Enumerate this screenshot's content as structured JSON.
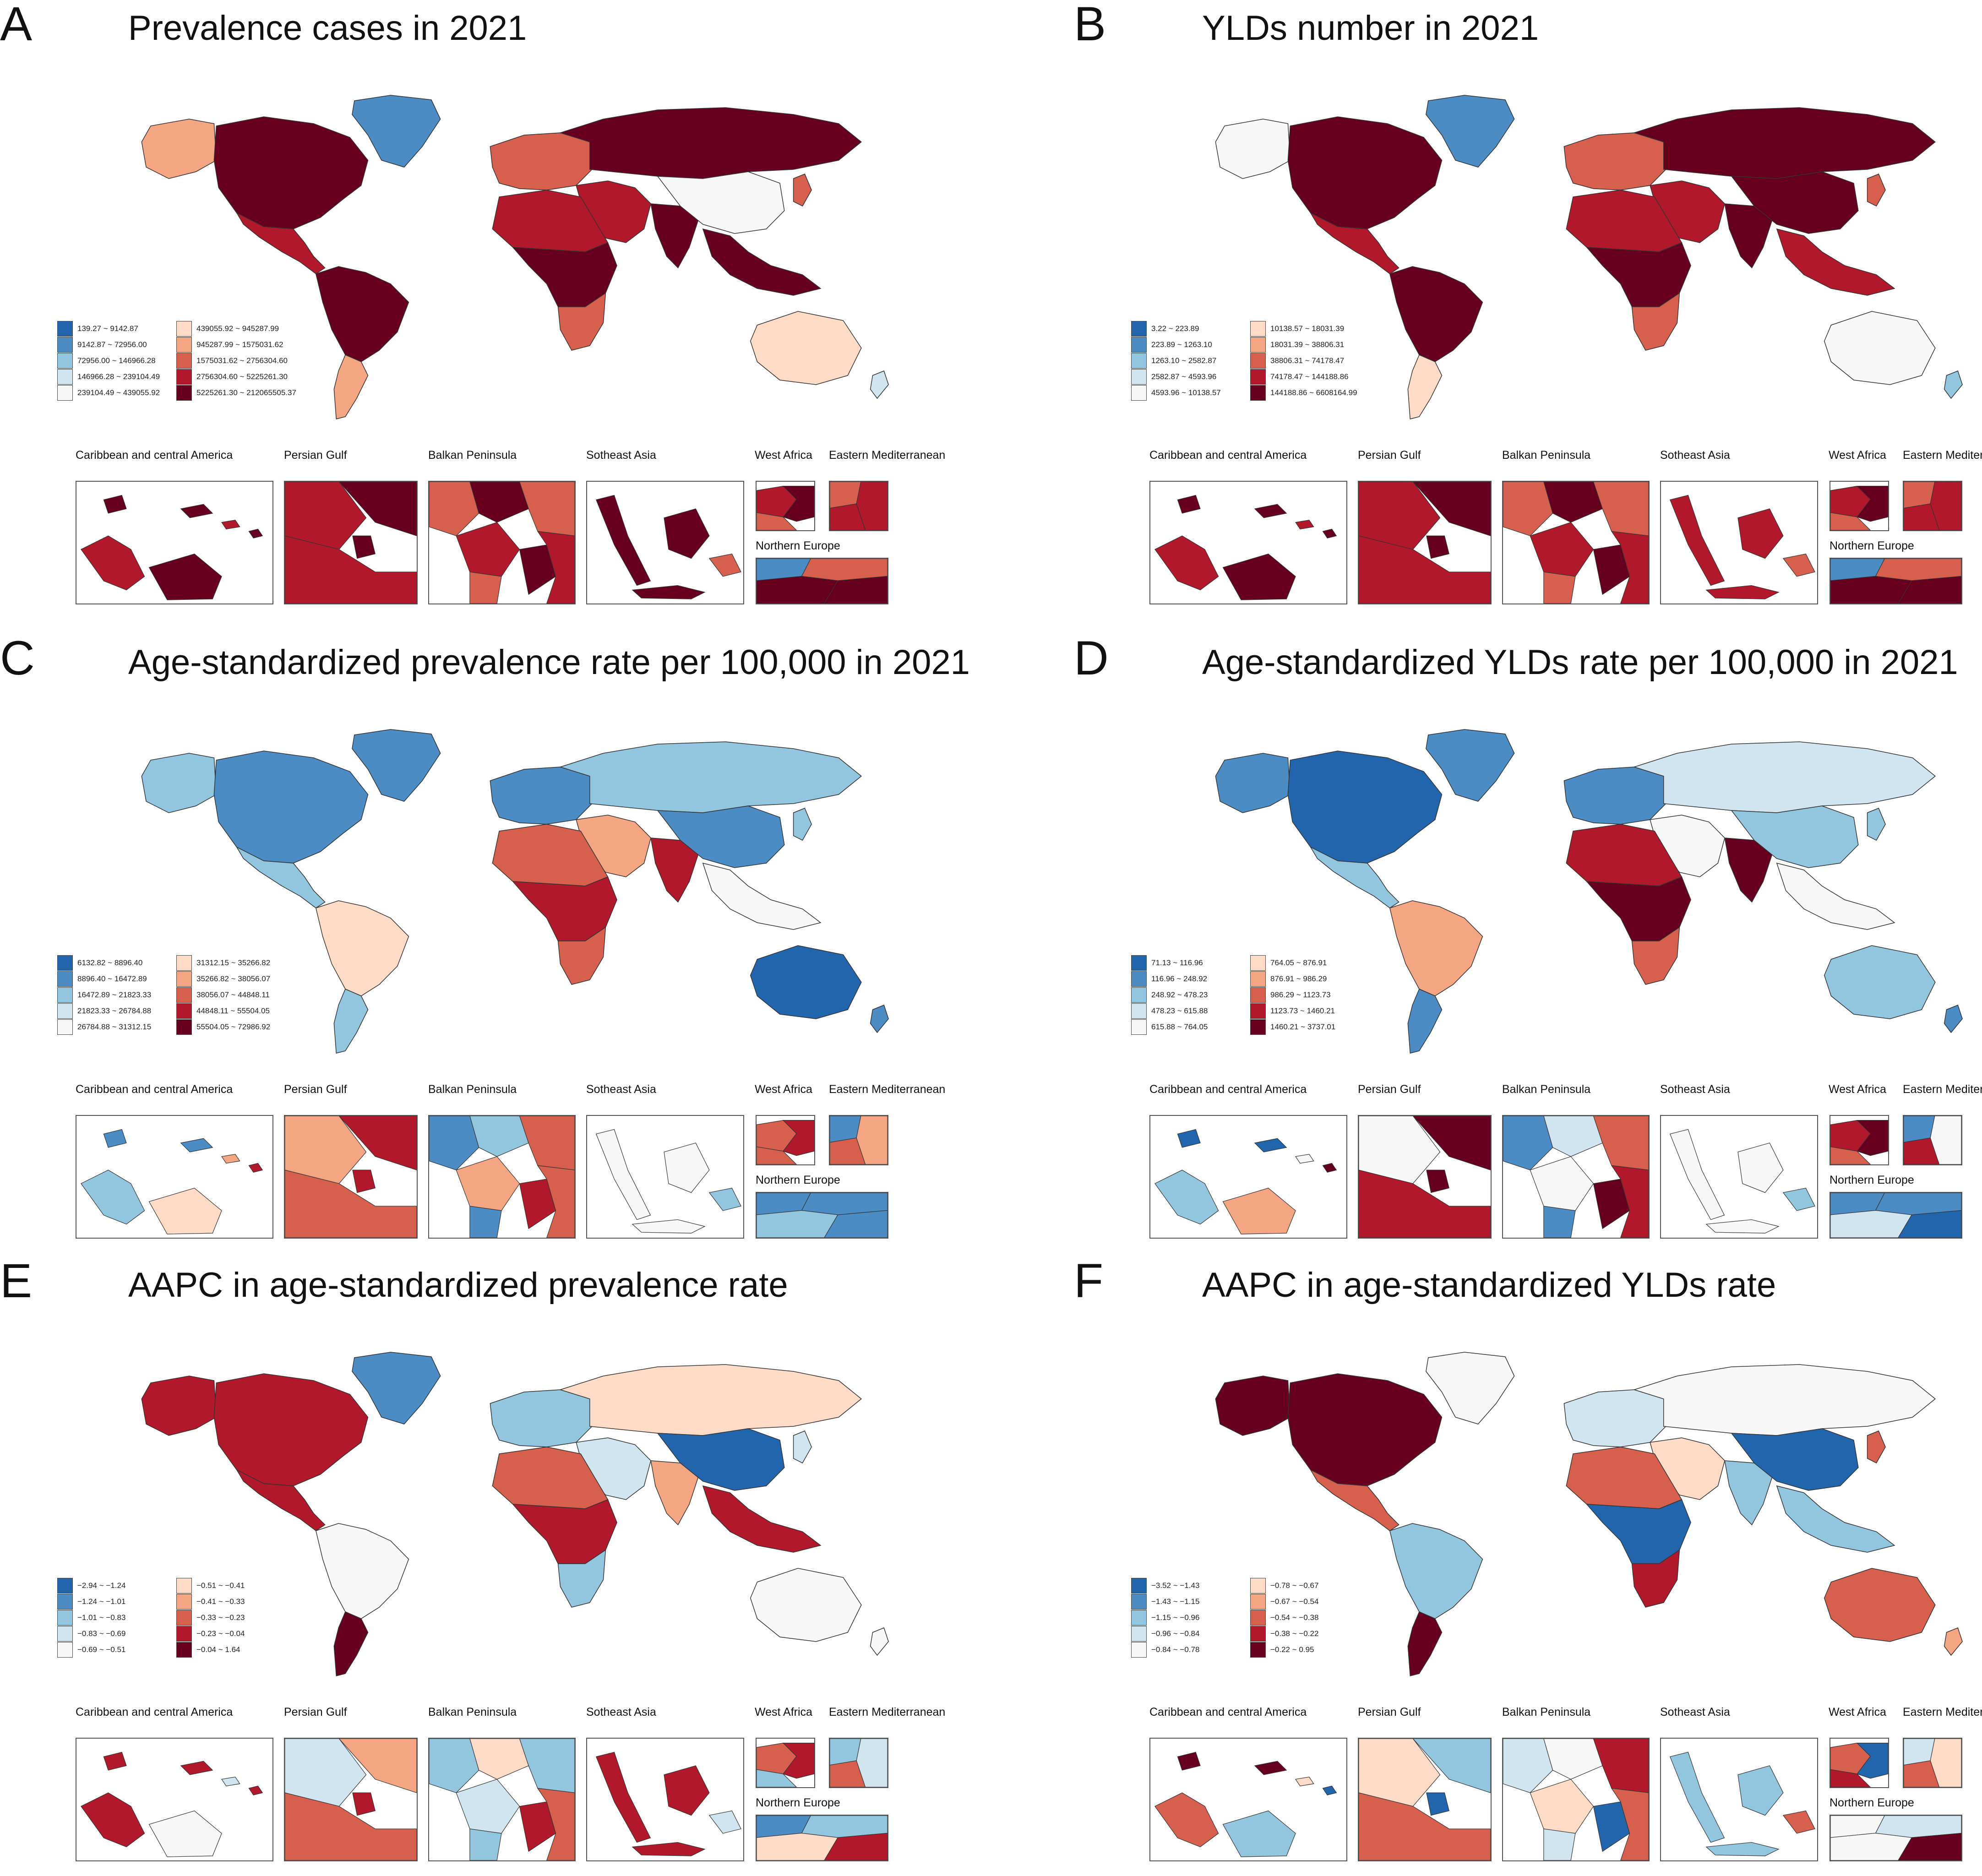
{
  "inset_titles": {
    "caribbean": "Caribbean and central America",
    "persian": "Persian Gulf",
    "balkan": "Balkan Peninsula",
    "southeast": "Sotheast Asia",
    "westafrica": "West Africa",
    "eastmed": "Eastern Mediterranean",
    "northeu": "Northern Europe"
  },
  "panels": [
    {
      "letter": "A",
      "title": "Prevalence cases in 2021",
      "colors": [
        "#2166ac",
        "#4a8cc3",
        "#92c5de",
        "#d1e5f0",
        "#f7f7f7",
        "#fddbc7",
        "#f4a582",
        "#d6604d",
        "#b2182b",
        "#67001f"
      ],
      "legend": [
        "139.27 ~ 9142.87",
        "9142.87 ~ 72956.00",
        "72956.00 ~ 146966.28",
        "146966.28 ~ 239104.49",
        "239104.49 ~ 439055.92",
        "439055.92 ~ 945287.99",
        "945287.99 ~ 1575031.62",
        "1575031.62 ~ 2756304.60",
        "2756304.60 ~ 5225261.30",
        "5225261.30 ~ 212065505.37"
      ],
      "regions": {
        "na": 9,
        "gl": 1,
        "alaska": 6,
        "ca": 8,
        "sa_n": 9,
        "sa_s": 6,
        "eu": 7,
        "ru": 9,
        "cn": 4,
        "in": 9,
        "me": 8,
        "af_n": 8,
        "af_c": 9,
        "af_s": 7,
        "au": 5,
        "sea": 9,
        "jp": 7,
        "nz": 3
      }
    },
    {
      "letter": "B",
      "title": "YLDs number in 2021",
      "colors": [
        "#2166ac",
        "#4a8cc3",
        "#92c5de",
        "#d1e5f0",
        "#f7f7f7",
        "#fddbc7",
        "#f4a582",
        "#d6604d",
        "#b2182b",
        "#67001f"
      ],
      "legend": [
        "3.22 ~ 223.89",
        "223.89 ~ 1263.10",
        "1263.10 ~ 2582.87",
        "2582.87 ~ 4593.96",
        "4593.96 ~ 10138.57",
        "10138.57 ~ 18031.39",
        "18031.39 ~ 38806.31",
        "38806.31 ~ 74178.47",
        "74178.47 ~ 144188.86",
        "144188.86 ~ 6608164.99"
      ],
      "regions": {
        "na": 9,
        "gl": 1,
        "alaska": 4,
        "ca": 8,
        "sa_n": 9,
        "sa_s": 5,
        "eu": 7,
        "ru": 9,
        "cn": 9,
        "in": 9,
        "me": 8,
        "af_n": 8,
        "af_c": 9,
        "af_s": 7,
        "au": 4,
        "sea": 8,
        "jp": 7,
        "nz": 2
      }
    },
    {
      "letter": "C",
      "title": "Age-standardized prevalence rate per 100,000 in 2021",
      "colors": [
        "#2166ac",
        "#4a8cc3",
        "#92c5de",
        "#d1e5f0",
        "#f7f7f7",
        "#fddbc7",
        "#f4a582",
        "#d6604d",
        "#b2182b",
        "#67001f"
      ],
      "legend": [
        "6132.82 ~ 8896.40",
        "8896.40 ~ 16472.89",
        "16472.89 ~ 21823.33",
        "21823.33 ~ 26784.88",
        "26784.88 ~ 31312.15",
        "31312.15 ~ 35266.82",
        "35266.82 ~ 38056.07",
        "38056.07 ~ 44848.11",
        "44848.11 ~ 55504.05",
        "55504.05 ~ 72986.92"
      ],
      "regions": {
        "na": 1,
        "gl": 1,
        "alaska": 2,
        "ca": 2,
        "sa_n": 5,
        "sa_s": 2,
        "eu": 1,
        "ru": 2,
        "cn": 1,
        "in": 8,
        "me": 6,
        "af_n": 7,
        "af_c": 8,
        "af_s": 7,
        "au": 0,
        "sea": 4,
        "jp": 2,
        "nz": 1
      }
    },
    {
      "letter": "D",
      "title": "Age-standardized YLDs rate per 100,000 in 2021",
      "colors": [
        "#2166ac",
        "#4a8cc3",
        "#92c5de",
        "#d1e5f0",
        "#f7f7f7",
        "#fddbc7",
        "#f4a582",
        "#d6604d",
        "#b2182b",
        "#67001f"
      ],
      "legend": [
        "71.13 ~ 116.96",
        "116.96 ~ 248.92",
        "248.92 ~ 478.23",
        "478.23 ~ 615.88",
        "615.88 ~ 764.05",
        "764.05 ~ 876.91",
        "876.91 ~ 986.29",
        "986.29 ~ 1123.73",
        "1123.73 ~ 1460.21",
        "1460.21 ~ 3737.01"
      ],
      "regions": {
        "na": 0,
        "gl": 1,
        "alaska": 1,
        "ca": 2,
        "sa_n": 6,
        "sa_s": 1,
        "eu": 1,
        "ru": 3,
        "cn": 2,
        "in": 9,
        "me": 4,
        "af_n": 8,
        "af_c": 9,
        "af_s": 7,
        "au": 2,
        "sea": 4,
        "jp": 2,
        "nz": 1
      }
    },
    {
      "letter": "E",
      "title": "AAPC in age-standardized prevalence rate",
      "colors": [
        "#2166ac",
        "#4a8cc3",
        "#92c5de",
        "#d1e5f0",
        "#f7f7f7",
        "#fddbc7",
        "#f4a582",
        "#d6604d",
        "#b2182b",
        "#67001f"
      ],
      "legend": [
        "−2.94 ~ −1.24",
        "−1.24 ~ −1.01",
        "−1.01 ~ −0.83",
        "−0.83 ~ −0.69",
        "−0.69 ~ −0.51",
        "−0.51 ~ −0.41",
        "−0.41 ~ −0.33",
        "−0.33 ~ −0.23",
        "−0.23 ~ −0.04",
        "−0.04 ~ 1.64"
      ],
      "regions": {
        "na": 8,
        "gl": 1,
        "alaska": 8,
        "ca": 8,
        "sa_n": 4,
        "sa_s": 9,
        "eu": 2,
        "ru": 5,
        "cn": 0,
        "in": 6,
        "me": 3,
        "af_n": 7,
        "af_c": 8,
        "af_s": 2,
        "au": 4,
        "sea": 8,
        "jp": 3,
        "nz": 4
      }
    },
    {
      "letter": "F",
      "title": "AAPC in age-standardized YLDs rate",
      "colors": [
        "#2166ac",
        "#4a8cc3",
        "#92c5de",
        "#d1e5f0",
        "#f7f7f7",
        "#fddbc7",
        "#f4a582",
        "#d6604d",
        "#b2182b",
        "#67001f"
      ],
      "legend": [
        "−3.52 ~ −1.43",
        "−1.43 ~ −1.15",
        "−1.15 ~ −0.96",
        "−0.96 ~ −0.84",
        "−0.84 ~ −0.78",
        "−0.78 ~ −0.67",
        "−0.67 ~ −0.54",
        "−0.54 ~ −0.38",
        "−0.38 ~ −0.22",
        "−0.22 ~ 0.95"
      ],
      "regions": {
        "na": 9,
        "gl": 4,
        "alaska": 9,
        "ca": 7,
        "sa_n": 2,
        "sa_s": 9,
        "eu": 3,
        "ru": 4,
        "cn": 0,
        "in": 2,
        "me": 5,
        "af_n": 7,
        "af_c": 0,
        "af_s": 8,
        "au": 7,
        "sea": 2,
        "jp": 7,
        "nz": 6
      }
    }
  ]
}
